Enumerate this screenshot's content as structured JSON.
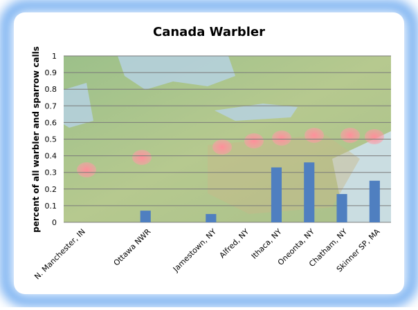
{
  "chart_data": {
    "type": "bar",
    "title": "Canada Warbler",
    "y_label": "percent of all warbler and sparrow calls",
    "categories": [
      "N. Manchester, IN",
      null,
      "Ottawa NWR",
      null,
      "Jamestown, NY",
      "Alfred, NY",
      "Ithaca, NY",
      "Oneonta, NY",
      "Chatham, NY",
      "Skinner SP, MA"
    ],
    "values": [
      0,
      null,
      0.07,
      null,
      0.05,
      0,
      0.33,
      0.36,
      0.17,
      0.25
    ],
    "color": "#4f7fc0",
    "ylim": [
      0,
      1
    ],
    "yticks": [
      0,
      0.1,
      0.2,
      0.3,
      0.4,
      0.5,
      0.6,
      0.7,
      0.8,
      0.9,
      1
    ],
    "grid": true
  }
}
